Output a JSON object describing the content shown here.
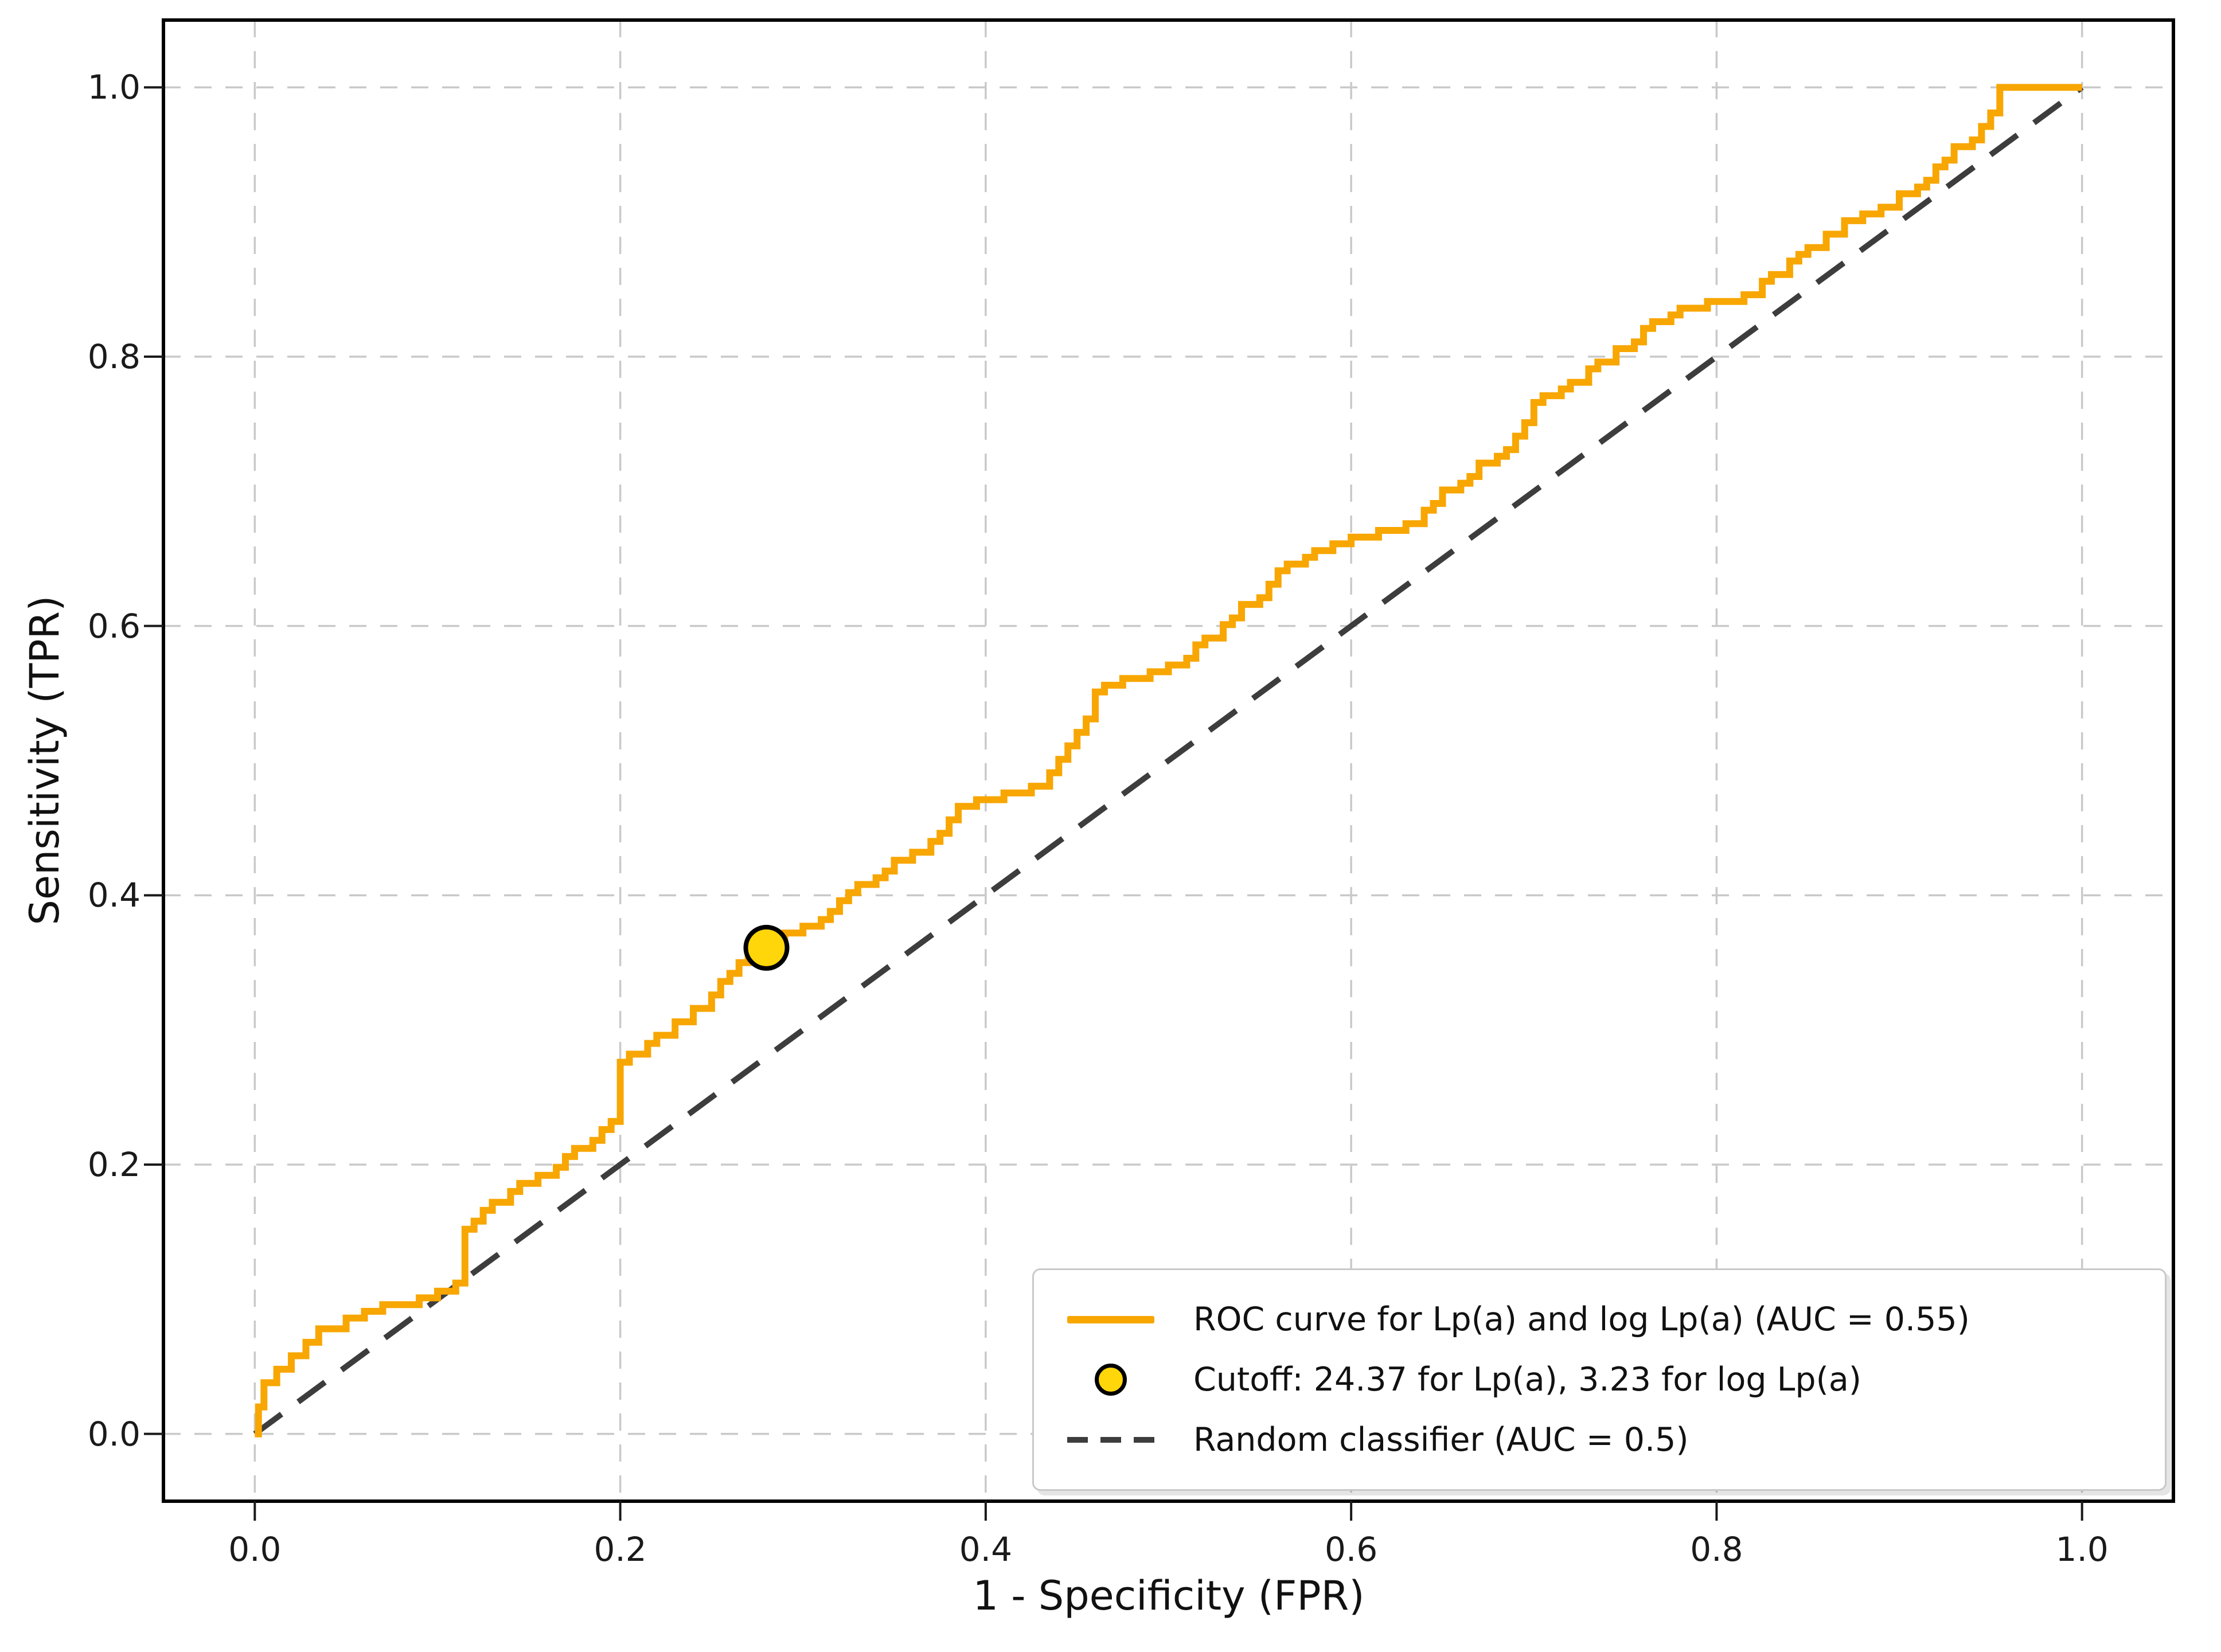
{
  "figure": {
    "background": "#ffffff"
  },
  "chart_data": {
    "type": "line",
    "title": "",
    "xlabel": "1 - Specificity (FPR)",
    "ylabel": "Sensitivity (TPR)",
    "xlim": [
      -0.05,
      1.05
    ],
    "ylim": [
      -0.05,
      1.05
    ],
    "xticks": [
      0,
      0.2,
      0.4,
      0.6,
      0.8,
      1.0
    ],
    "yticks": [
      0,
      0.2,
      0.4,
      0.6,
      0.8,
      1.0
    ],
    "xtick_labels": [
      "0.0",
      "0.2",
      "0.4",
      "0.6",
      "0.8",
      "1.0"
    ],
    "ytick_labels": [
      "0.0",
      "0.2",
      "0.4",
      "0.6",
      "0.8",
      "1.0"
    ],
    "grid": true,
    "grid_color": "#c9c9c9",
    "frame_color": "#000000",
    "legend_position": "lower right",
    "series": [
      {
        "name": "ROC curve for Lp(a) and log Lp(a) (AUC = 0.55)",
        "type": "step_line",
        "color": "#F8A602",
        "auc": 0.55,
        "points": [
          [
            0,
            0
          ],
          [
            0.002,
            0
          ],
          [
            0.002,
            0.02
          ],
          [
            0.005,
            0.02
          ],
          [
            0.005,
            0.038
          ],
          [
            0.012,
            0.038
          ],
          [
            0.012,
            0.048
          ],
          [
            0.02,
            0.048
          ],
          [
            0.02,
            0.058
          ],
          [
            0.028,
            0.058
          ],
          [
            0.028,
            0.068
          ],
          [
            0.035,
            0.068
          ],
          [
            0.035,
            0.078
          ],
          [
            0.05,
            0.078
          ],
          [
            0.05,
            0.086
          ],
          [
            0.06,
            0.086
          ],
          [
            0.06,
            0.091
          ],
          [
            0.07,
            0.091
          ],
          [
            0.07,
            0.096
          ],
          [
            0.09,
            0.096
          ],
          [
            0.09,
            0.101
          ],
          [
            0.1,
            0.101
          ],
          [
            0.1,
            0.106
          ],
          [
            0.11,
            0.106
          ],
          [
            0.11,
            0.112
          ],
          [
            0.115,
            0.112
          ],
          [
            0.115,
            0.152
          ],
          [
            0.12,
            0.152
          ],
          [
            0.12,
            0.158
          ],
          [
            0.125,
            0.158
          ],
          [
            0.125,
            0.166
          ],
          [
            0.13,
            0.166
          ],
          [
            0.13,
            0.172
          ],
          [
            0.14,
            0.172
          ],
          [
            0.14,
            0.18
          ],
          [
            0.145,
            0.18
          ],
          [
            0.145,
            0.186
          ],
          [
            0.155,
            0.186
          ],
          [
            0.155,
            0.192
          ],
          [
            0.165,
            0.192
          ],
          [
            0.165,
            0.198
          ],
          [
            0.17,
            0.198
          ],
          [
            0.17,
            0.206
          ],
          [
            0.175,
            0.206
          ],
          [
            0.175,
            0.212
          ],
          [
            0.185,
            0.212
          ],
          [
            0.185,
            0.218
          ],
          [
            0.19,
            0.218
          ],
          [
            0.19,
            0.226
          ],
          [
            0.195,
            0.226
          ],
          [
            0.195,
            0.232
          ],
          [
            0.2,
            0.232
          ],
          [
            0.2,
            0.276
          ],
          [
            0.205,
            0.276
          ],
          [
            0.205,
            0.282
          ],
          [
            0.215,
            0.282
          ],
          [
            0.215,
            0.29
          ],
          [
            0.22,
            0.29
          ],
          [
            0.22,
            0.296
          ],
          [
            0.23,
            0.296
          ],
          [
            0.23,
            0.306
          ],
          [
            0.24,
            0.306
          ],
          [
            0.24,
            0.316
          ],
          [
            0.25,
            0.316
          ],
          [
            0.25,
            0.326
          ],
          [
            0.255,
            0.326
          ],
          [
            0.255,
            0.336
          ],
          [
            0.26,
            0.336
          ],
          [
            0.26,
            0.342
          ],
          [
            0.265,
            0.342
          ],
          [
            0.265,
            0.35
          ],
          [
            0.27,
            0.35
          ],
          [
            0.27,
            0.356
          ],
          [
            0.28,
            0.356
          ],
          [
            0.28,
            0.366
          ],
          [
            0.29,
            0.366
          ],
          [
            0.29,
            0.372
          ],
          [
            0.3,
            0.372
          ],
          [
            0.3,
            0.377
          ],
          [
            0.31,
            0.377
          ],
          [
            0.31,
            0.382
          ],
          [
            0.315,
            0.382
          ],
          [
            0.315,
            0.388
          ],
          [
            0.32,
            0.388
          ],
          [
            0.32,
            0.396
          ],
          [
            0.325,
            0.396
          ],
          [
            0.325,
            0.402
          ],
          [
            0.33,
            0.402
          ],
          [
            0.33,
            0.408
          ],
          [
            0.34,
            0.408
          ],
          [
            0.34,
            0.413
          ],
          [
            0.345,
            0.413
          ],
          [
            0.345,
            0.418
          ],
          [
            0.35,
            0.418
          ],
          [
            0.35,
            0.426
          ],
          [
            0.36,
            0.426
          ],
          [
            0.36,
            0.432
          ],
          [
            0.37,
            0.432
          ],
          [
            0.37,
            0.44
          ],
          [
            0.375,
            0.44
          ],
          [
            0.375,
            0.446
          ],
          [
            0.38,
            0.446
          ],
          [
            0.38,
            0.456
          ],
          [
            0.385,
            0.456
          ],
          [
            0.385,
            0.466
          ],
          [
            0.395,
            0.466
          ],
          [
            0.395,
            0.471
          ],
          [
            0.41,
            0.471
          ],
          [
            0.41,
            0.476
          ],
          [
            0.425,
            0.476
          ],
          [
            0.425,
            0.481
          ],
          [
            0.435,
            0.481
          ],
          [
            0.435,
            0.491
          ],
          [
            0.44,
            0.491
          ],
          [
            0.44,
            0.501
          ],
          [
            0.445,
            0.501
          ],
          [
            0.445,
            0.511
          ],
          [
            0.45,
            0.511
          ],
          [
            0.45,
            0.521
          ],
          [
            0.455,
            0.521
          ],
          [
            0.455,
            0.531
          ],
          [
            0.46,
            0.531
          ],
          [
            0.46,
            0.551
          ],
          [
            0.465,
            0.551
          ],
          [
            0.465,
            0.556
          ],
          [
            0.475,
            0.556
          ],
          [
            0.475,
            0.561
          ],
          [
            0.49,
            0.561
          ],
          [
            0.49,
            0.566
          ],
          [
            0.5,
            0.566
          ],
          [
            0.5,
            0.571
          ],
          [
            0.51,
            0.571
          ],
          [
            0.51,
            0.576
          ],
          [
            0.515,
            0.576
          ],
          [
            0.515,
            0.586
          ],
          [
            0.52,
            0.586
          ],
          [
            0.52,
            0.591
          ],
          [
            0.53,
            0.591
          ],
          [
            0.53,
            0.601
          ],
          [
            0.535,
            0.601
          ],
          [
            0.535,
            0.606
          ],
          [
            0.54,
            0.606
          ],
          [
            0.54,
            0.616
          ],
          [
            0.55,
            0.616
          ],
          [
            0.55,
            0.621
          ],
          [
            0.555,
            0.621
          ],
          [
            0.555,
            0.631
          ],
          [
            0.56,
            0.631
          ],
          [
            0.56,
            0.641
          ],
          [
            0.565,
            0.641
          ],
          [
            0.565,
            0.646
          ],
          [
            0.575,
            0.646
          ],
          [
            0.575,
            0.651
          ],
          [
            0.58,
            0.651
          ],
          [
            0.58,
            0.656
          ],
          [
            0.59,
            0.656
          ],
          [
            0.59,
            0.661
          ],
          [
            0.6,
            0.661
          ],
          [
            0.6,
            0.666
          ],
          [
            0.615,
            0.666
          ],
          [
            0.615,
            0.671
          ],
          [
            0.63,
            0.671
          ],
          [
            0.63,
            0.676
          ],
          [
            0.64,
            0.676
          ],
          [
            0.64,
            0.686
          ],
          [
            0.645,
            0.686
          ],
          [
            0.645,
            0.691
          ],
          [
            0.65,
            0.691
          ],
          [
            0.65,
            0.701
          ],
          [
            0.66,
            0.701
          ],
          [
            0.66,
            0.706
          ],
          [
            0.665,
            0.706
          ],
          [
            0.665,
            0.711
          ],
          [
            0.67,
            0.711
          ],
          [
            0.67,
            0.721
          ],
          [
            0.68,
            0.721
          ],
          [
            0.68,
            0.726
          ],
          [
            0.685,
            0.726
          ],
          [
            0.685,
            0.731
          ],
          [
            0.69,
            0.731
          ],
          [
            0.69,
            0.741
          ],
          [
            0.695,
            0.741
          ],
          [
            0.695,
            0.751
          ],
          [
            0.7,
            0.751
          ],
          [
            0.7,
            0.766
          ],
          [
            0.705,
            0.766
          ],
          [
            0.705,
            0.771
          ],
          [
            0.715,
            0.771
          ],
          [
            0.715,
            0.776
          ],
          [
            0.72,
            0.776
          ],
          [
            0.72,
            0.781
          ],
          [
            0.73,
            0.781
          ],
          [
            0.73,
            0.791
          ],
          [
            0.735,
            0.791
          ],
          [
            0.735,
            0.796
          ],
          [
            0.745,
            0.796
          ],
          [
            0.745,
            0.806
          ],
          [
            0.755,
            0.806
          ],
          [
            0.755,
            0.811
          ],
          [
            0.76,
            0.811
          ],
          [
            0.76,
            0.821
          ],
          [
            0.765,
            0.821
          ],
          [
            0.765,
            0.826
          ],
          [
            0.775,
            0.826
          ],
          [
            0.775,
            0.831
          ],
          [
            0.78,
            0.831
          ],
          [
            0.78,
            0.836
          ],
          [
            0.795,
            0.836
          ],
          [
            0.795,
            0.841
          ],
          [
            0.815,
            0.841
          ],
          [
            0.815,
            0.846
          ],
          [
            0.825,
            0.846
          ],
          [
            0.825,
            0.856
          ],
          [
            0.83,
            0.856
          ],
          [
            0.83,
            0.861
          ],
          [
            0.84,
            0.861
          ],
          [
            0.84,
            0.871
          ],
          [
            0.845,
            0.871
          ],
          [
            0.845,
            0.876
          ],
          [
            0.85,
            0.876
          ],
          [
            0.85,
            0.881
          ],
          [
            0.86,
            0.881
          ],
          [
            0.86,
            0.891
          ],
          [
            0.87,
            0.891
          ],
          [
            0.87,
            0.901
          ],
          [
            0.88,
            0.901
          ],
          [
            0.88,
            0.906
          ],
          [
            0.89,
            0.906
          ],
          [
            0.89,
            0.911
          ],
          [
            0.9,
            0.911
          ],
          [
            0.9,
            0.921
          ],
          [
            0.91,
            0.921
          ],
          [
            0.91,
            0.926
          ],
          [
            0.915,
            0.926
          ],
          [
            0.915,
            0.931
          ],
          [
            0.92,
            0.931
          ],
          [
            0.92,
            0.941
          ],
          [
            0.925,
            0.941
          ],
          [
            0.925,
            0.946
          ],
          [
            0.93,
            0.946
          ],
          [
            0.93,
            0.956
          ],
          [
            0.94,
            0.956
          ],
          [
            0.94,
            0.961
          ],
          [
            0.945,
            0.961
          ],
          [
            0.945,
            0.971
          ],
          [
            0.95,
            0.971
          ],
          [
            0.95,
            0.981
          ],
          [
            0.955,
            0.981
          ],
          [
            0.955,
            1.0
          ],
          [
            1.0,
            1.0
          ]
        ]
      },
      {
        "name": "Cutoff: 24.37 for Lp(a), 3.23 for log Lp(a)",
        "type": "marker",
        "marker": "circle",
        "color": "#FFD60A",
        "edge_color": "#000000",
        "point": [
          0.28,
          0.361
        ],
        "cutoff_lpa": 24.37,
        "cutoff_log_lpa": 3.23
      },
      {
        "name": "Random classifier (AUC = 0.5)",
        "type": "dashed_line",
        "color": "#3d3d3d",
        "auc": 0.5,
        "points": [
          [
            0,
            0
          ],
          [
            1,
            1
          ]
        ]
      }
    ]
  }
}
